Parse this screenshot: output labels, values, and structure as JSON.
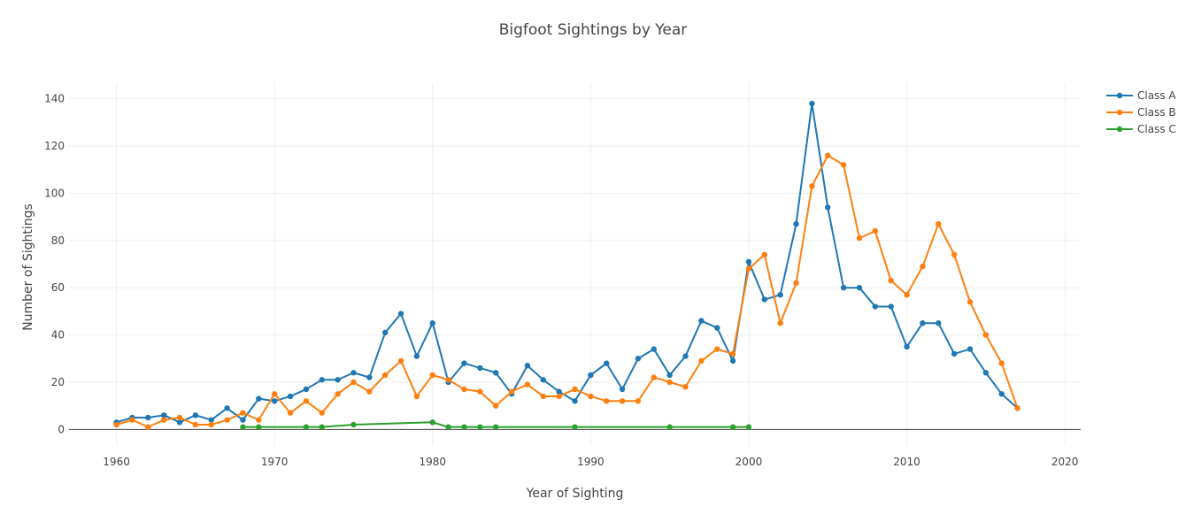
{
  "chart_data": {
    "type": "line",
    "title": "Bigfoot Sightings by Year",
    "xlabel": "Year of Sighting",
    "ylabel": "Number of Sightings",
    "xlim": [
      1957,
      2021
    ],
    "ylim": [
      -7,
      147
    ],
    "x_ticks": [
      1960,
      1970,
      1980,
      1990,
      2000,
      2010,
      2020
    ],
    "y_ticks": [
      0,
      20,
      40,
      60,
      80,
      100,
      120,
      140
    ],
    "grid": true,
    "legend_position": "top-right",
    "series": [
      {
        "name": "Class A",
        "color": "#1f77b4",
        "x": [
          1960,
          1961,
          1962,
          1963,
          1964,
          1965,
          1966,
          1967,
          1968,
          1969,
          1970,
          1971,
          1972,
          1973,
          1974,
          1975,
          1976,
          1977,
          1978,
          1979,
          1980,
          1981,
          1982,
          1983,
          1984,
          1985,
          1986,
          1987,
          1988,
          1989,
          1990,
          1991,
          1992,
          1993,
          1994,
          1995,
          1996,
          1997,
          1998,
          1999,
          2000,
          2001,
          2002,
          2003,
          2004,
          2005,
          2006,
          2007,
          2008,
          2009,
          2010,
          2011,
          2012,
          2013,
          2014,
          2015,
          2016,
          2017
        ],
        "y": [
          3,
          5,
          5,
          6,
          3,
          6,
          4,
          9,
          4,
          13,
          12,
          14,
          17,
          21,
          21,
          24,
          22,
          41,
          49,
          31,
          45,
          20,
          28,
          26,
          24,
          15,
          27,
          21,
          16,
          12,
          23,
          28,
          17,
          30,
          34,
          23,
          31,
          46,
          43,
          29,
          71,
          55,
          57,
          87,
          138,
          94,
          60,
          60,
          52,
          52,
          35,
          45,
          45,
          32,
          34,
          24,
          15,
          9
        ]
      },
      {
        "name": "Class B",
        "color": "#ff7f0e",
        "x": [
          1960,
          1961,
          1962,
          1963,
          1964,
          1965,
          1966,
          1967,
          1968,
          1969,
          1970,
          1971,
          1972,
          1973,
          1974,
          1975,
          1976,
          1977,
          1978,
          1979,
          1980,
          1981,
          1982,
          1983,
          1984,
          1985,
          1986,
          1987,
          1988,
          1989,
          1990,
          1991,
          1992,
          1993,
          1994,
          1995,
          1996,
          1997,
          1998,
          1999,
          2000,
          2001,
          2002,
          2003,
          2004,
          2005,
          2006,
          2007,
          2008,
          2009,
          2010,
          2011,
          2012,
          2013,
          2014,
          2015,
          2016,
          2017
        ],
        "y": [
          2,
          4,
          1,
          4,
          5,
          2,
          2,
          4,
          7,
          4,
          15,
          7,
          12,
          7,
          15,
          20,
          16,
          23,
          29,
          14,
          23,
          21,
          17,
          16,
          10,
          16,
          19,
          14,
          14,
          17,
          14,
          12,
          12,
          12,
          22,
          20,
          18,
          29,
          34,
          32,
          68,
          74,
          45,
          62,
          103,
          116,
          112,
          81,
          84,
          63,
          57,
          69,
          87,
          74,
          54,
          40,
          28,
          9
        ]
      },
      {
        "name": "Class C",
        "color": "#2ca02c",
        "x": [
          1968,
          1969,
          1972,
          1973,
          1975,
          1980,
          1981,
          1982,
          1983,
          1984,
          1989,
          1995,
          1999,
          2000
        ],
        "y": [
          1,
          1,
          1,
          1,
          2,
          3,
          1,
          1,
          1,
          1,
          1,
          1,
          1,
          1
        ]
      }
    ]
  }
}
